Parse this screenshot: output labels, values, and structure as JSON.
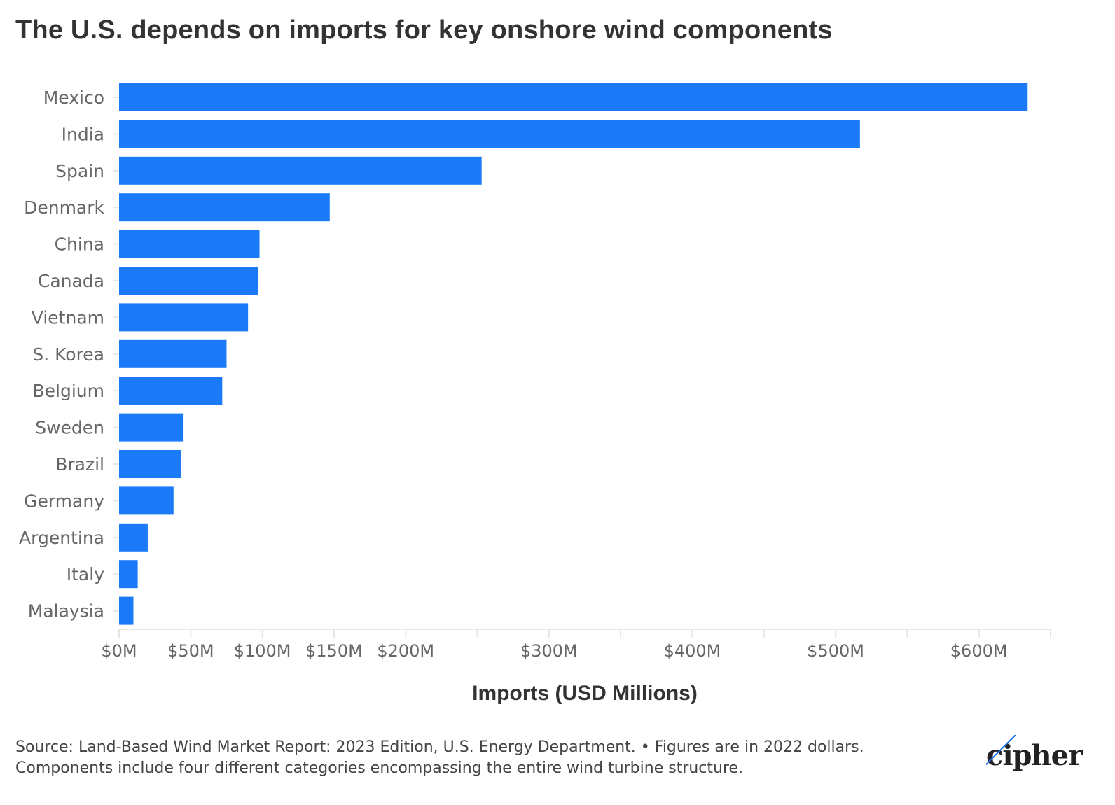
{
  "title": "The U.S. depends on imports for key onshore wind components",
  "source_line1": "Source: Land-Based Wind Market Report: 2023 Edition, U.S. Energy Department. • Figures are in 2022 dollars.",
  "source_line2": "Components include four different categories encompassing the entire wind turbine structure.",
  "logo": "cipher",
  "colors": {
    "bar": "#1a7af8",
    "logo_line": "#1a6fe0"
  },
  "chart_data": {
    "type": "bar",
    "orientation": "horizontal",
    "title": "The U.S. depends on imports for key onshore wind components",
    "xlabel": "Imports (USD Millions)",
    "ylabel": "",
    "xlim": [
      0,
      650
    ],
    "grid": false,
    "categories": [
      "Mexico",
      "India",
      "Spain",
      "Denmark",
      "China",
      "Canada",
      "Vietnam",
      "S. Korea",
      "Belgium",
      "Sweden",
      "Brazil",
      "Germany",
      "Argentina",
      "Italy",
      "Malaysia"
    ],
    "values": [
      634,
      517,
      253,
      147,
      98,
      97,
      90,
      75,
      72,
      45,
      43,
      38,
      20,
      13,
      10
    ],
    "ticks": [
      {
        "value": 0,
        "label": "$0M"
      },
      {
        "value": 50,
        "label": "$50M"
      },
      {
        "value": 100,
        "label": "$100M"
      },
      {
        "value": 150,
        "label": "$150M"
      },
      {
        "value": 200,
        "label": "$200M"
      },
      {
        "value": 250,
        "label": ""
      },
      {
        "value": 300,
        "label": "$300M"
      },
      {
        "value": 350,
        "label": ""
      },
      {
        "value": 400,
        "label": "$400M"
      },
      {
        "value": 450,
        "label": ""
      },
      {
        "value": 500,
        "label": "$500M"
      },
      {
        "value": 550,
        "label": ""
      },
      {
        "value": 600,
        "label": "$600M"
      },
      {
        "value": 650,
        "label": ""
      }
    ]
  }
}
